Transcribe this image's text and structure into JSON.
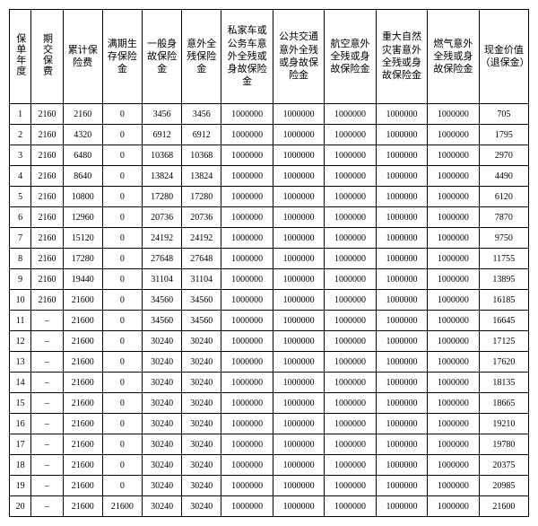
{
  "table": {
    "columns": [
      "保单年度",
      "期交保费",
      "累计保险费",
      "满期生存保险金",
      "一般身故保险金",
      "意外全残保险金",
      "私家车或公务车意外全残或身故保险金",
      "公共交通意外全残或身故保险金",
      "航空意外全残或身故保险金",
      "重大自然灾害意外全残或身故保险金",
      "燃气意外全残或身故保险金",
      "现金价值（退保金）"
    ],
    "rows": [
      [
        "1",
        "2160",
        "2160",
        "0",
        "3456",
        "3456",
        "1000000",
        "1000000",
        "1000000",
        "1000000",
        "1000000",
        "705"
      ],
      [
        "2",
        "2160",
        "4320",
        "0",
        "6912",
        "6912",
        "1000000",
        "1000000",
        "1000000",
        "1000000",
        "1000000",
        "1795"
      ],
      [
        "3",
        "2160",
        "6480",
        "0",
        "10368",
        "10368",
        "1000000",
        "1000000",
        "1000000",
        "1000000",
        "1000000",
        "2970"
      ],
      [
        "4",
        "2160",
        "8640",
        "0",
        "13824",
        "13824",
        "1000000",
        "1000000",
        "1000000",
        "1000000",
        "1000000",
        "4490"
      ],
      [
        "5",
        "2160",
        "10800",
        "0",
        "17280",
        "17280",
        "1000000",
        "1000000",
        "1000000",
        "1000000",
        "1000000",
        "6120"
      ],
      [
        "6",
        "2160",
        "12960",
        "0",
        "20736",
        "20736",
        "1000000",
        "1000000",
        "1000000",
        "1000000",
        "1000000",
        "7870"
      ],
      [
        "7",
        "2160",
        "15120",
        "0",
        "24192",
        "24192",
        "1000000",
        "1000000",
        "1000000",
        "1000000",
        "1000000",
        "9750"
      ],
      [
        "8",
        "2160",
        "17280",
        "0",
        "27648",
        "27648",
        "1000000",
        "1000000",
        "1000000",
        "1000000",
        "1000000",
        "11755"
      ],
      [
        "9",
        "2160",
        "19440",
        "0",
        "31104",
        "31104",
        "1000000",
        "1000000",
        "1000000",
        "1000000",
        "1000000",
        "13895"
      ],
      [
        "10",
        "2160",
        "21600",
        "0",
        "34560",
        "34560",
        "1000000",
        "1000000",
        "1000000",
        "1000000",
        "1000000",
        "16185"
      ],
      [
        "11",
        "–",
        "21600",
        "0",
        "34560",
        "34560",
        "1000000",
        "1000000",
        "1000000",
        "1000000",
        "1000000",
        "16645"
      ],
      [
        "12",
        "–",
        "21600",
        "0",
        "30240",
        "30240",
        "1000000",
        "1000000",
        "1000000",
        "1000000",
        "1000000",
        "17125"
      ],
      [
        "13",
        "–",
        "21600",
        "0",
        "30240",
        "30240",
        "1000000",
        "1000000",
        "1000000",
        "1000000",
        "1000000",
        "17620"
      ],
      [
        "14",
        "–",
        "21600",
        "0",
        "30240",
        "30240",
        "1000000",
        "1000000",
        "1000000",
        "1000000",
        "1000000",
        "18135"
      ],
      [
        "15",
        "–",
        "21600",
        "0",
        "30240",
        "30240",
        "1000000",
        "1000000",
        "1000000",
        "1000000",
        "1000000",
        "18665"
      ],
      [
        "16",
        "–",
        "21600",
        "0",
        "30240",
        "30240",
        "1000000",
        "1000000",
        "1000000",
        "1000000",
        "1000000",
        "19210"
      ],
      [
        "17",
        "–",
        "21600",
        "0",
        "30240",
        "30240",
        "1000000",
        "1000000",
        "1000000",
        "1000000",
        "1000000",
        "19780"
      ],
      [
        "18",
        "–",
        "21600",
        "0",
        "30240",
        "30240",
        "1000000",
        "1000000",
        "1000000",
        "1000000",
        "1000000",
        "20375"
      ],
      [
        "19",
        "–",
        "21600",
        "0",
        "30240",
        "30240",
        "1000000",
        "1000000",
        "1000000",
        "1000000",
        "1000000",
        "20985"
      ],
      [
        "20",
        "–",
        "21600",
        "21600",
        "30240",
        "30240",
        "1000000",
        "1000000",
        "1000000",
        "1000000",
        "1000000",
        "21600"
      ]
    ]
  }
}
